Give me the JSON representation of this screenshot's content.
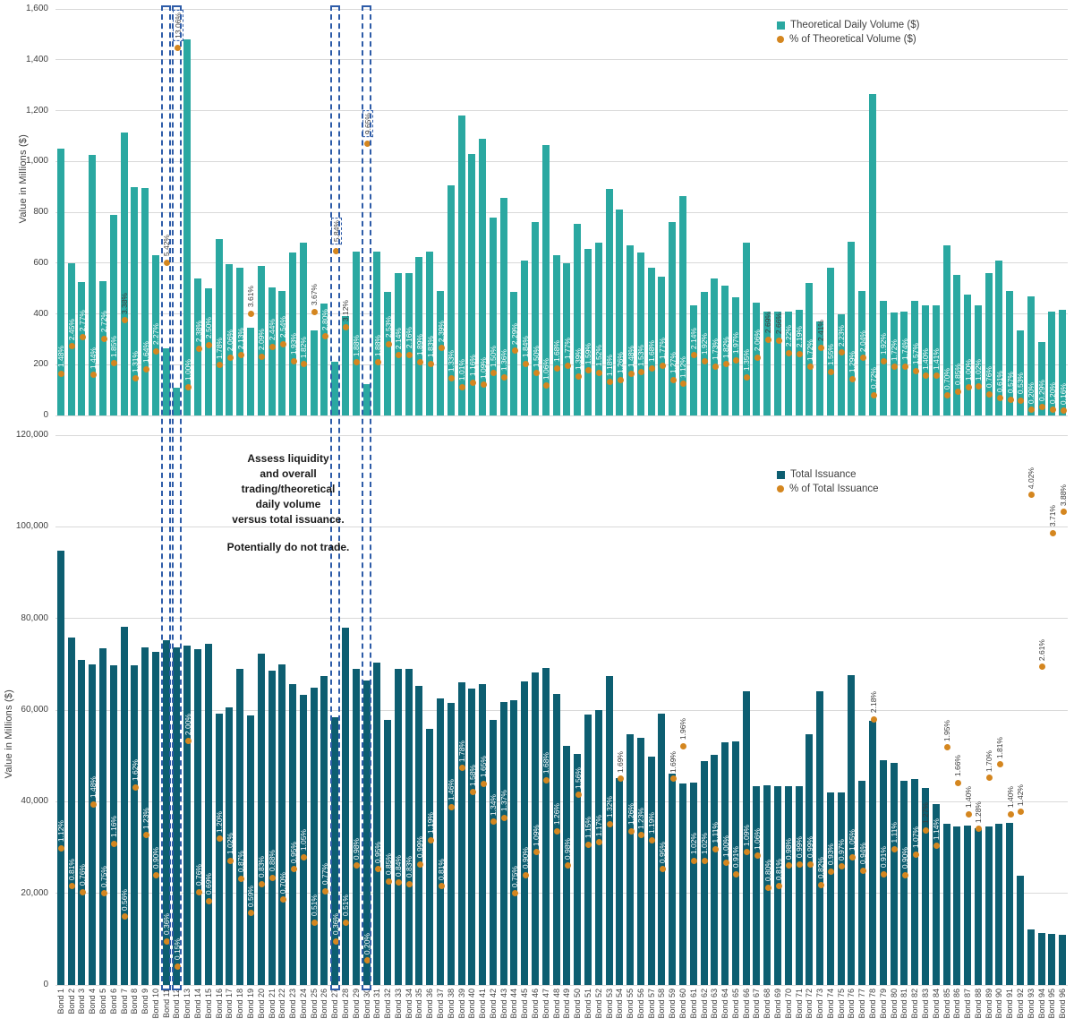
{
  "annotation": {
    "line1": "Assess liquidity and overall trading/theoretical daily volume versus total issuance.",
    "line1_display": "Assess liquidity\nand overall\ntrading/theoretical\ndaily volume\nversus total issuance.",
    "line2": "Potentially do not trade."
  },
  "colors": {
    "top_bar": "#2aa8a1",
    "bottom_bar": "#0d5e71",
    "pct_dot": "#d4861f",
    "highlight_dash": "#2e5ca8",
    "gridline": "#d9d9d9",
    "axis_text": "#3f3f3f"
  },
  "highlight_boxed_bonds": [
    [
      11,
      11
    ],
    [
      12,
      12
    ],
    [
      27,
      27
    ],
    [
      30,
      30
    ]
  ],
  "chart_data": [
    {
      "type": "bar+scatter",
      "panel": "top",
      "ylabel": "Value in Millions ($)",
      "ylim": [
        0,
        1600
      ],
      "ytick_labels": [
        "0",
        "200",
        "400",
        "600",
        "800",
        "1,000",
        "1,200",
        "1,400",
        "1,600"
      ],
      "pct_axis_max": 14.43,
      "grid": true,
      "legend_position": "top-right",
      "legend": [
        {
          "label": "Theoretical Daily Volume ($)",
          "marker": "square",
          "color": "#2aa8a1"
        },
        {
          "label": "% of Theoretical Volume ($)",
          "marker": "dot",
          "color": "#d4861f"
        }
      ],
      "series": [
        {
          "name": "Theoretical Daily Volume ($)",
          "kind": "bar",
          "values": [
            1050,
            600,
            525,
            1025,
            530,
            790,
            1115,
            900,
            895,
            630,
            265,
            110,
            1480,
            540,
            500,
            695,
            595,
            580,
            345,
            590,
            505,
            490,
            640,
            680,
            335,
            440,
            210,
            390,
            645,
            125,
            645,
            485,
            560,
            560,
            625,
            645,
            490,
            905,
            1180,
            1030,
            1090,
            780,
            855,
            485,
            610,
            760,
            1065,
            630,
            600,
            755,
            655,
            680,
            890,
            810,
            670,
            640,
            580,
            545,
            760,
            865,
            435,
            485,
            540,
            510,
            465,
            680,
            445,
            410,
            410,
            410,
            415,
            520,
            370,
            580,
            400,
            685,
            490,
            1265,
            450,
            405,
            410,
            450,
            435,
            435,
            670,
            555,
            475,
            435,
            560,
            610,
            490,
            335,
            470,
            290,
            410,
            415
          ]
        },
        {
          "name": "% of Theoretical Volume ($)",
          "kind": "scatter-pct",
          "values": [
            1.48,
            2.45,
            2.77,
            1.44,
            2.72,
            1.85,
            3.38,
            1.31,
            1.64,
            2.27,
            5.42,
            13.06,
            1.0,
            2.38,
            2.5,
            1.78,
            2.06,
            2.13,
            3.61,
            2.09,
            2.44,
            2.54,
            1.93,
            1.82,
            3.67,
            2.8,
            5.84,
            3.12,
            1.88,
            9.65,
            1.88,
            2.53,
            2.14,
            2.16,
            1.89,
            1.83,
            2.39,
            1.33,
            1.01,
            1.16,
            1.09,
            1.5,
            1.36,
            2.29,
            1.84,
            1.5,
            1.06,
            1.68,
            1.77,
            1.39,
            1.59,
            1.52,
            1.18,
            1.26,
            1.48,
            1.53,
            1.68,
            1.77,
            1.27,
            1.12,
            2.14,
            1.92,
            1.73,
            1.82,
            1.97,
            1.35,
            2.06,
            2.69,
            2.66,
            2.22,
            2.19,
            1.72,
            2.41,
            1.55,
            2.23,
            1.29,
            2.04,
            0.72,
            1.92,
            1.72,
            1.74,
            1.57,
            1.4,
            1.41,
            0.7,
            0.85,
            1.0,
            1.02,
            0.76,
            0.61,
            0.57,
            0.53,
            0.2,
            0.29,
            0.2,
            0.16
          ]
        }
      ],
      "dark_label_bonds": [
        7,
        11,
        12,
        19,
        25,
        27,
        28,
        30,
        68,
        69,
        73
      ],
      "dash_boxed_label_bonds": [
        12,
        27,
        30
      ]
    },
    {
      "type": "bar+scatter",
      "panel": "bottom",
      "ylabel": "Value in Millions ($)",
      "ylim": [
        0,
        120000
      ],
      "ytick_labels": [
        "0",
        "20,000",
        "40,000",
        "60,000",
        "80,000",
        "100,000",
        "120,000"
      ],
      "pct_axis_max": 4.51,
      "grid": true,
      "legend_position": "top-right",
      "legend": [
        {
          "label": "Total Issuance",
          "marker": "square",
          "color": "#0d5e71"
        },
        {
          "label": "% of Total Issuance",
          "marker": "dot",
          "color": "#d4861f"
        }
      ],
      "series": [
        {
          "name": "Total Issuance",
          "kind": "bar",
          "values": [
            94700,
            75800,
            71000,
            70000,
            73400,
            69800,
            78100,
            69700,
            73700,
            72700,
            75300,
            73700,
            74000,
            73200,
            74500,
            59200,
            60500,
            69000,
            58900,
            72300,
            68600,
            70000,
            65600,
            63400,
            64900,
            67400,
            58500,
            77900,
            69000,
            66500,
            70300,
            57900,
            68900,
            68900,
            65200,
            55800,
            62500,
            61500,
            66100,
            64600,
            65600,
            57900,
            61700,
            62100,
            66300,
            68200,
            69200,
            63500,
            52100,
            50400,
            59100,
            60000,
            67400,
            45100,
            54700,
            54000,
            49800,
            59200,
            46200,
            43900,
            44200,
            48800,
            50200,
            52900,
            53100,
            64100,
            43400,
            43500,
            43400,
            43300,
            43400,
            54800,
            64100,
            42000,
            42000,
            67700,
            44500,
            57600,
            49000,
            48500,
            44500,
            45000,
            43000,
            39500,
            35200,
            34500,
            34800,
            34200,
            34600,
            35100,
            35400,
            23800,
            12100,
            11400,
            11200,
            10900
          ]
        },
        {
          "name": "% of Total Issuance",
          "kind": "scatter-pct",
          "values": [
            1.12,
            0.81,
            0.76,
            1.48,
            0.75,
            1.16,
            0.56,
            1.62,
            1.23,
            0.9,
            0.36,
            0.15,
            2.0,
            0.76,
            0.69,
            1.2,
            1.02,
            0.87,
            0.59,
            0.83,
            0.88,
            0.7,
            0.95,
            1.05,
            0.51,
            0.77,
            0.36,
            0.51,
            0.98,
            0.2,
            0.95,
            0.85,
            0.84,
            0.83,
            0.99,
            1.19,
            0.81,
            1.46,
            1.78,
            1.58,
            1.65,
            1.34,
            1.37,
            0.75,
            0.9,
            1.09,
            1.68,
            1.26,
            0.98,
            1.56,
            1.15,
            1.17,
            1.32,
            1.69,
            1.26,
            1.23,
            1.19,
            0.95,
            1.69,
            1.96,
            1.02,
            1.02,
            1.11,
            1.0,
            0.91,
            1.09,
            1.06,
            0.8,
            0.81,
            0.98,
            0.99,
            0.99,
            0.82,
            0.93,
            0.97,
            1.05,
            0.94,
            2.18,
            0.91,
            1.11,
            0.9,
            1.07,
            1.27,
            1.14,
            1.95,
            1.66,
            1.4,
            1.28,
            1.7,
            1.81,
            1.4,
            1.42,
            4.02,
            2.61,
            3.71,
            3.88
          ]
        }
      ],
      "dark_label_bonds": [
        54,
        59,
        60,
        78,
        83,
        85,
        86,
        87,
        88,
        89,
        90,
        91,
        92,
        93,
        94,
        95,
        96
      ],
      "dash_boxed_label_bonds": []
    }
  ],
  "categories": [
    "Bond 1",
    "Bond 2",
    "Bond 3",
    "Bond 4",
    "Bond 5",
    "Bond 6",
    "Bond 7",
    "Bond 8",
    "Bond 9",
    "Bond 10",
    "Bond 11",
    "Bond 12",
    "Bond 13",
    "Bond 14",
    "Bond 15",
    "Bond 16",
    "Bond 17",
    "Bond 18",
    "Bond 19",
    "Bond 20",
    "Bond 21",
    "Bond 22",
    "Bond 23",
    "Bond 24",
    "Bond 25",
    "Bond 26",
    "Bond 27",
    "Bond 28",
    "Bond 29",
    "Bond 30",
    "Bond 31",
    "Bond 32",
    "Bond 33",
    "Bond 34",
    "Bond 35",
    "Bond 36",
    "Bond 37",
    "Bond 38",
    "Bond 39",
    "Bond 40",
    "Bond 41",
    "Bond 42",
    "Bond 43",
    "Bond 44",
    "Bond 45",
    "Bond 46",
    "Bond 47",
    "Bond 48",
    "Bond 49",
    "Bond 50",
    "Bond 51",
    "Bond 52",
    "Bond 53",
    "Bond 54",
    "Bond 55",
    "Bond 56",
    "Bond 57",
    "Bond 58",
    "Bond 59",
    "Bond 60",
    "Bond 61",
    "Bond 62",
    "Bond 63",
    "Bond 64",
    "Bond 65",
    "Bond 66",
    "Bond 67",
    "Bond 68",
    "Bond 69",
    "Bond 70",
    "Bond 71",
    "Bond 72",
    "Bond 73",
    "Bond 74",
    "Bond 75",
    "Bond 76",
    "Bond 77",
    "Bond 78",
    "Bond 79",
    "Bond 80",
    "Bond 81",
    "Bond 82",
    "Bond 83",
    "Bond 84",
    "Bond 85",
    "Bond 86",
    "Bond 87",
    "Bond 88",
    "Bond 89",
    "Bond 90",
    "Bond 91",
    "Bond 92",
    "Bond 93",
    "Bond 94",
    "Bond 95",
    "Bond 96"
  ]
}
